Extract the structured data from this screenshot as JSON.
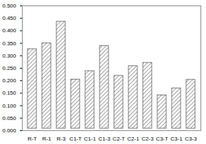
{
  "chart_data": {
    "type": "bar",
    "categories": [
      "R-T",
      "R-1",
      "R-3",
      "C1-T",
      "C1-1",
      "C1-3",
      "C2-T",
      "C2-1",
      "C2-3",
      "C3-T",
      "C3-1",
      "C3-3"
    ],
    "values": [
      0.335,
      0.358,
      0.445,
      0.213,
      0.247,
      0.348,
      0.228,
      0.267,
      0.28,
      0.15,
      0.178,
      0.212
    ],
    "color": "#595959",
    "ylim": [
      0,
      0.5
    ],
    "yticks": [
      {
        "value": 0,
        "label": "0.000"
      },
      {
        "value": 0.05,
        "label": "0.050"
      },
      {
        "value": 0.1,
        "label": "0.100"
      },
      {
        "value": 0.15,
        "label": "0.150"
      },
      {
        "value": 0.2,
        "label": "0.200"
      },
      {
        "value": 0.25,
        "label": "0.250"
      },
      {
        "value": 0.3,
        "label": "0.300"
      },
      {
        "value": 0.35,
        "label": "0.350"
      },
      {
        "value": 0.4,
        "label": "0.400"
      },
      {
        "value": 0.45,
        "label": "0.450"
      },
      {
        "value": 0.5,
        "label": "0.500"
      }
    ],
    "grid": false
  }
}
